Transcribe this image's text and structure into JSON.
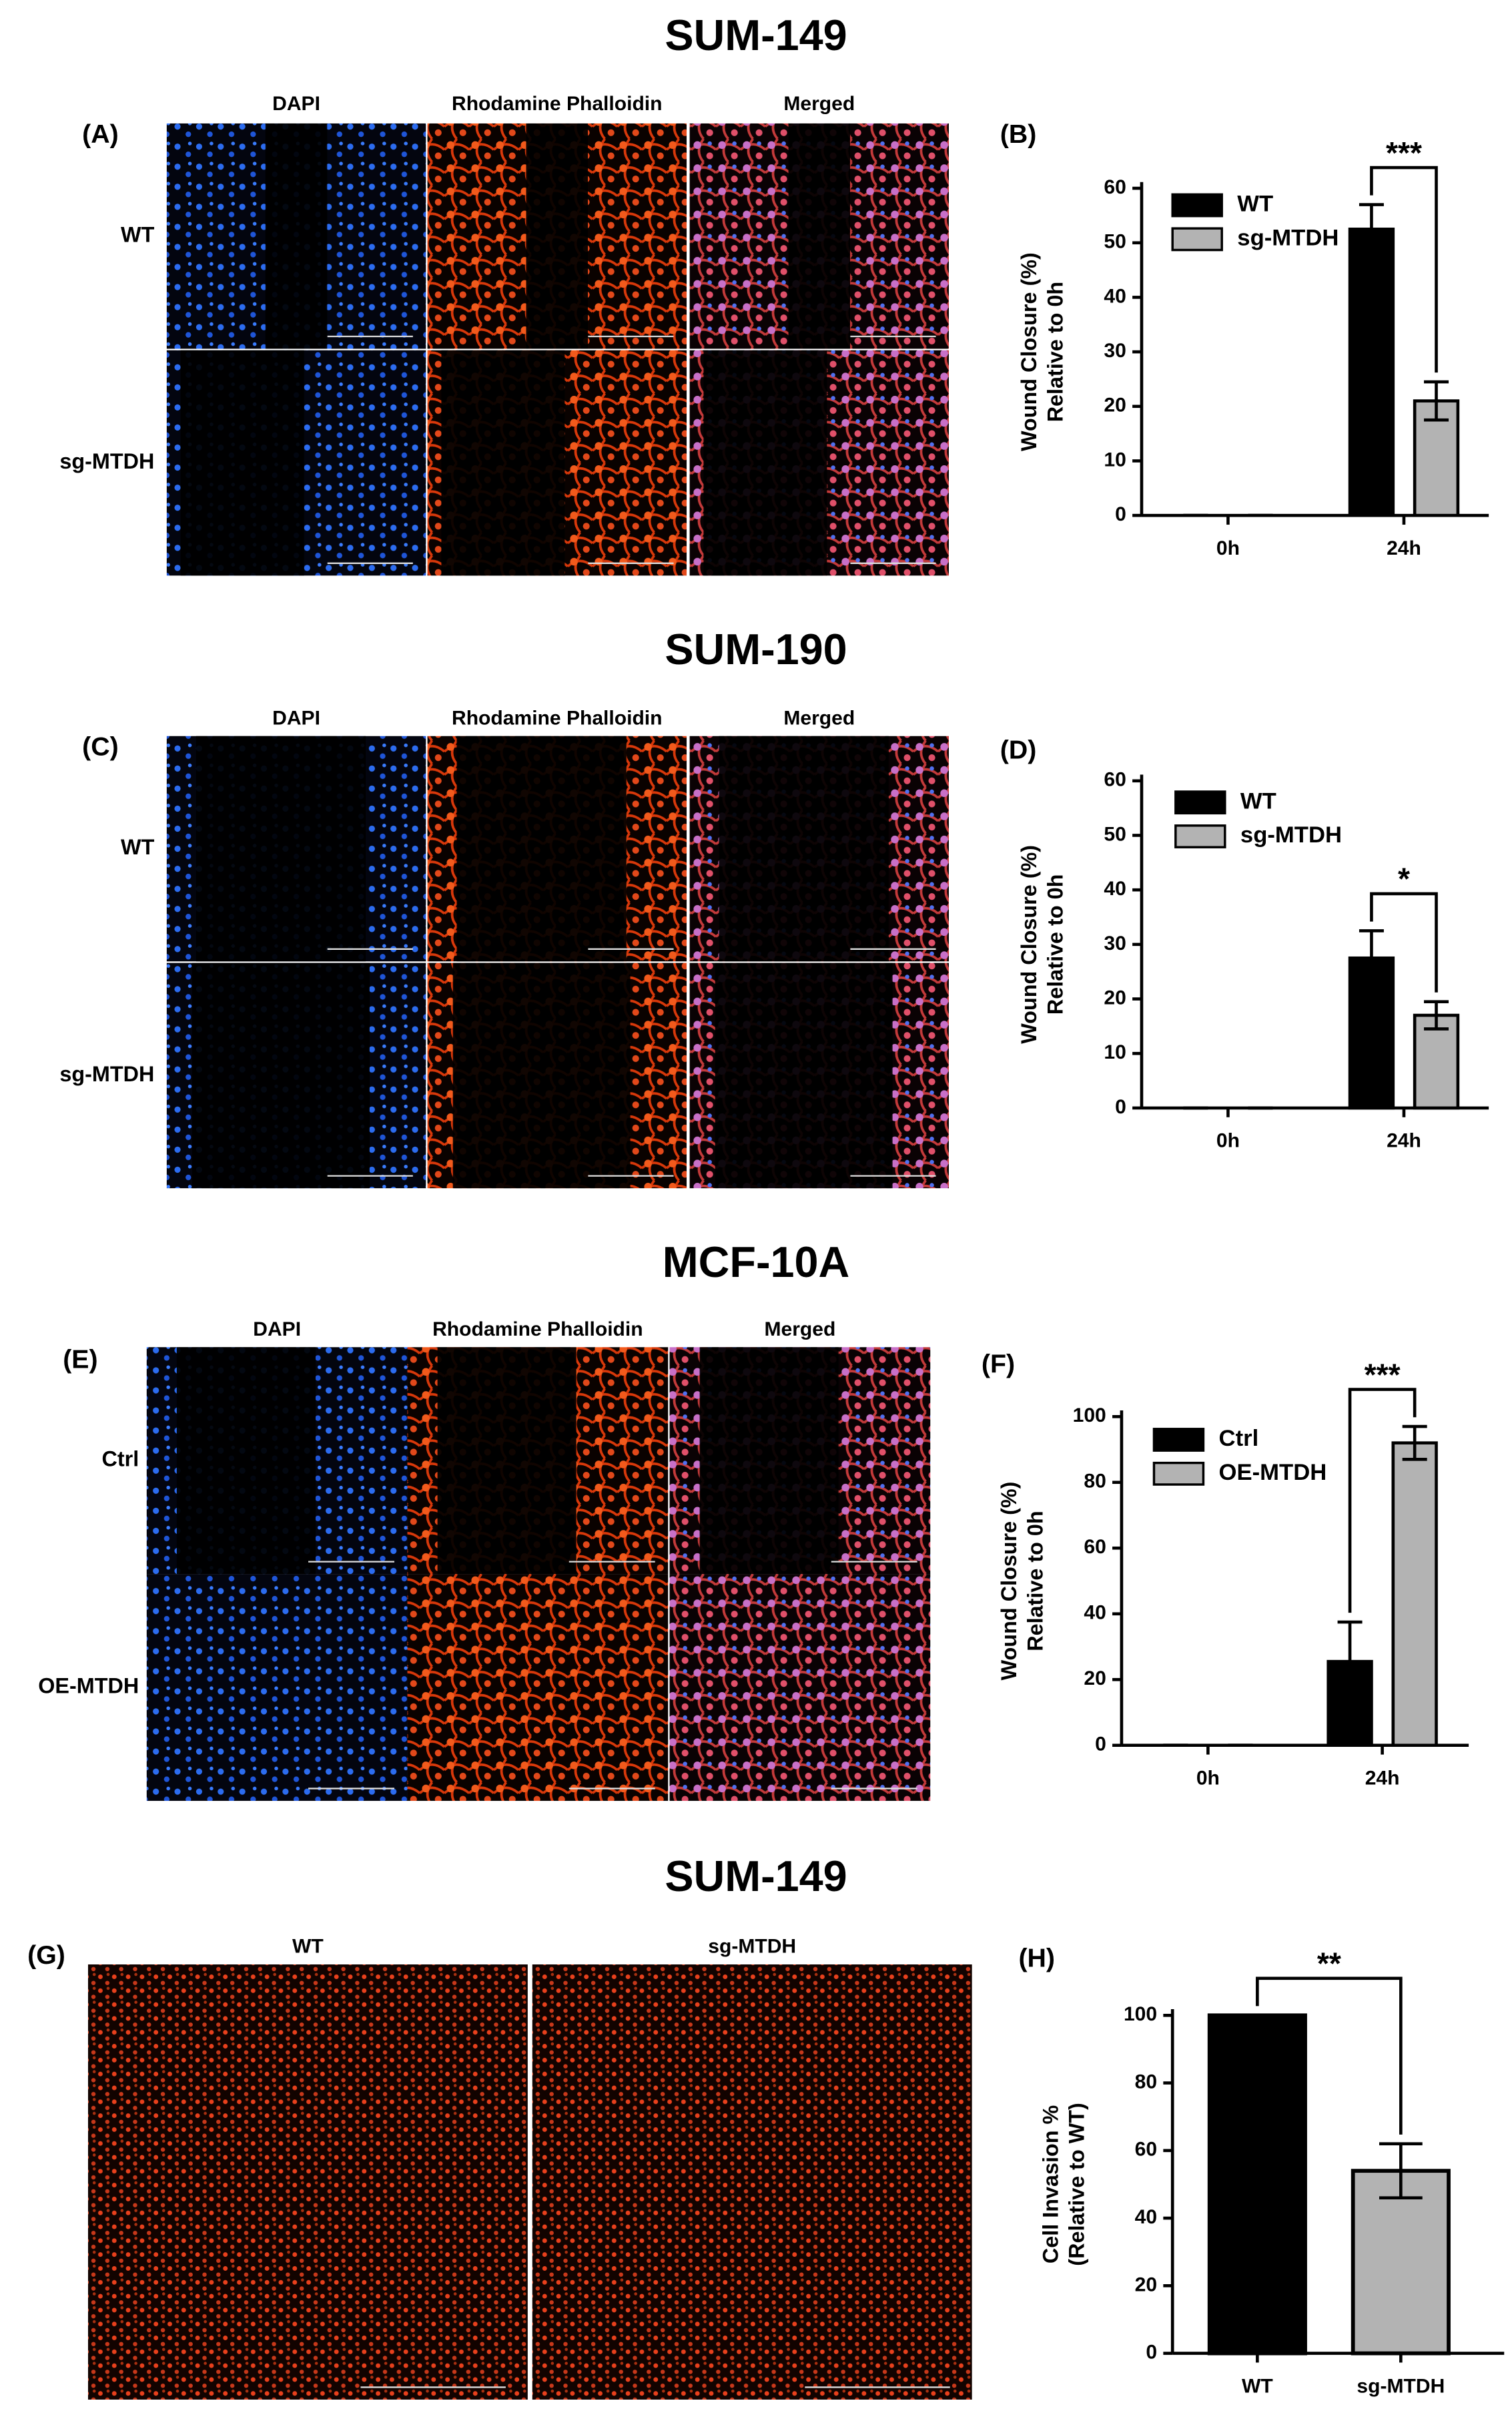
{
  "figure": {
    "sections": [
      {
        "title": "SUM-149",
        "panel_label": "(A)",
        "columns": [
          "DAPI",
          "Rhodamine Phalloidin",
          "Merged"
        ],
        "rows": [
          "WT",
          "sg-MTDH"
        ]
      },
      {
        "title": "SUM-190",
        "panel_label": "(C)",
        "columns": [
          "DAPI",
          "Rhodamine Phalloidin",
          "Merged"
        ],
        "rows": [
          "WT",
          "sg-MTDH"
        ]
      },
      {
        "title": "MCF-10A",
        "panel_label": "(E)",
        "columns": [
          "DAPI",
          "Rhodamine Phalloidin",
          "Merged"
        ],
        "rows": [
          "Ctrl",
          "OE-MTDH"
        ]
      },
      {
        "title": "SUM-149",
        "panel_label": "(G)",
        "columns": [
          "WT",
          "sg-MTDH"
        ]
      }
    ]
  },
  "chart_data": [
    {
      "type": "bar",
      "panel_label": "(B)",
      "ylabel": [
        "Wound Closure (%)",
        "Relative to 0h"
      ],
      "categories": [
        "0h",
        "24h"
      ],
      "series": [
        {
          "name": "WT",
          "color": "#000000",
          "values": [
            0,
            52.5
          ],
          "errors": [
            0,
            4.5
          ]
        },
        {
          "name": "sg-MTDH",
          "color": "#b3b3b3",
          "values": [
            0,
            21
          ],
          "errors": [
            0,
            3.5
          ]
        }
      ],
      "ylim": [
        0,
        60
      ],
      "yticks": [
        0,
        10,
        20,
        30,
        40,
        50,
        60
      ],
      "significance": "***"
    },
    {
      "type": "bar",
      "panel_label": "(D)",
      "ylabel": [
        "Wound Closure (%)",
        "Relative to 0h"
      ],
      "categories": [
        "0h",
        "24h"
      ],
      "series": [
        {
          "name": "WT",
          "color": "#000000",
          "values": [
            0,
            27.5
          ],
          "errors": [
            0,
            5
          ]
        },
        {
          "name": "sg-MTDH",
          "color": "#b3b3b3",
          "values": [
            0,
            17
          ],
          "errors": [
            0,
            2.5
          ]
        }
      ],
      "ylim": [
        0,
        60
      ],
      "yticks": [
        0,
        10,
        20,
        30,
        40,
        50,
        60
      ],
      "significance": "*"
    },
    {
      "type": "bar",
      "panel_label": "(F)",
      "ylabel": [
        "Wound Closure (%)",
        "Relative to 0h"
      ],
      "categories": [
        "0h",
        "24h"
      ],
      "series": [
        {
          "name": "Ctrl",
          "color": "#000000",
          "values": [
            0,
            25.5
          ],
          "errors": [
            0,
            12
          ]
        },
        {
          "name": "OE-MTDH",
          "color": "#b3b3b3",
          "values": [
            0,
            92
          ],
          "errors": [
            0,
            5
          ]
        }
      ],
      "ylim": [
        0,
        100
      ],
      "yticks": [
        0,
        20,
        40,
        60,
        80,
        100
      ],
      "significance": "***"
    },
    {
      "type": "bar",
      "panel_label": "(H)",
      "ylabel": [
        "Cell Invasion %",
        "(Relative to WT)"
      ],
      "categories": [
        "WT",
        "sg-MTDH"
      ],
      "values": [
        100,
        54
      ],
      "errors": [
        0,
        8
      ],
      "colors": [
        "#000000",
        "#b3b3b3"
      ],
      "ylim": [
        0,
        100
      ],
      "yticks": [
        0,
        20,
        40,
        60,
        80,
        100
      ],
      "significance": "**"
    }
  ]
}
